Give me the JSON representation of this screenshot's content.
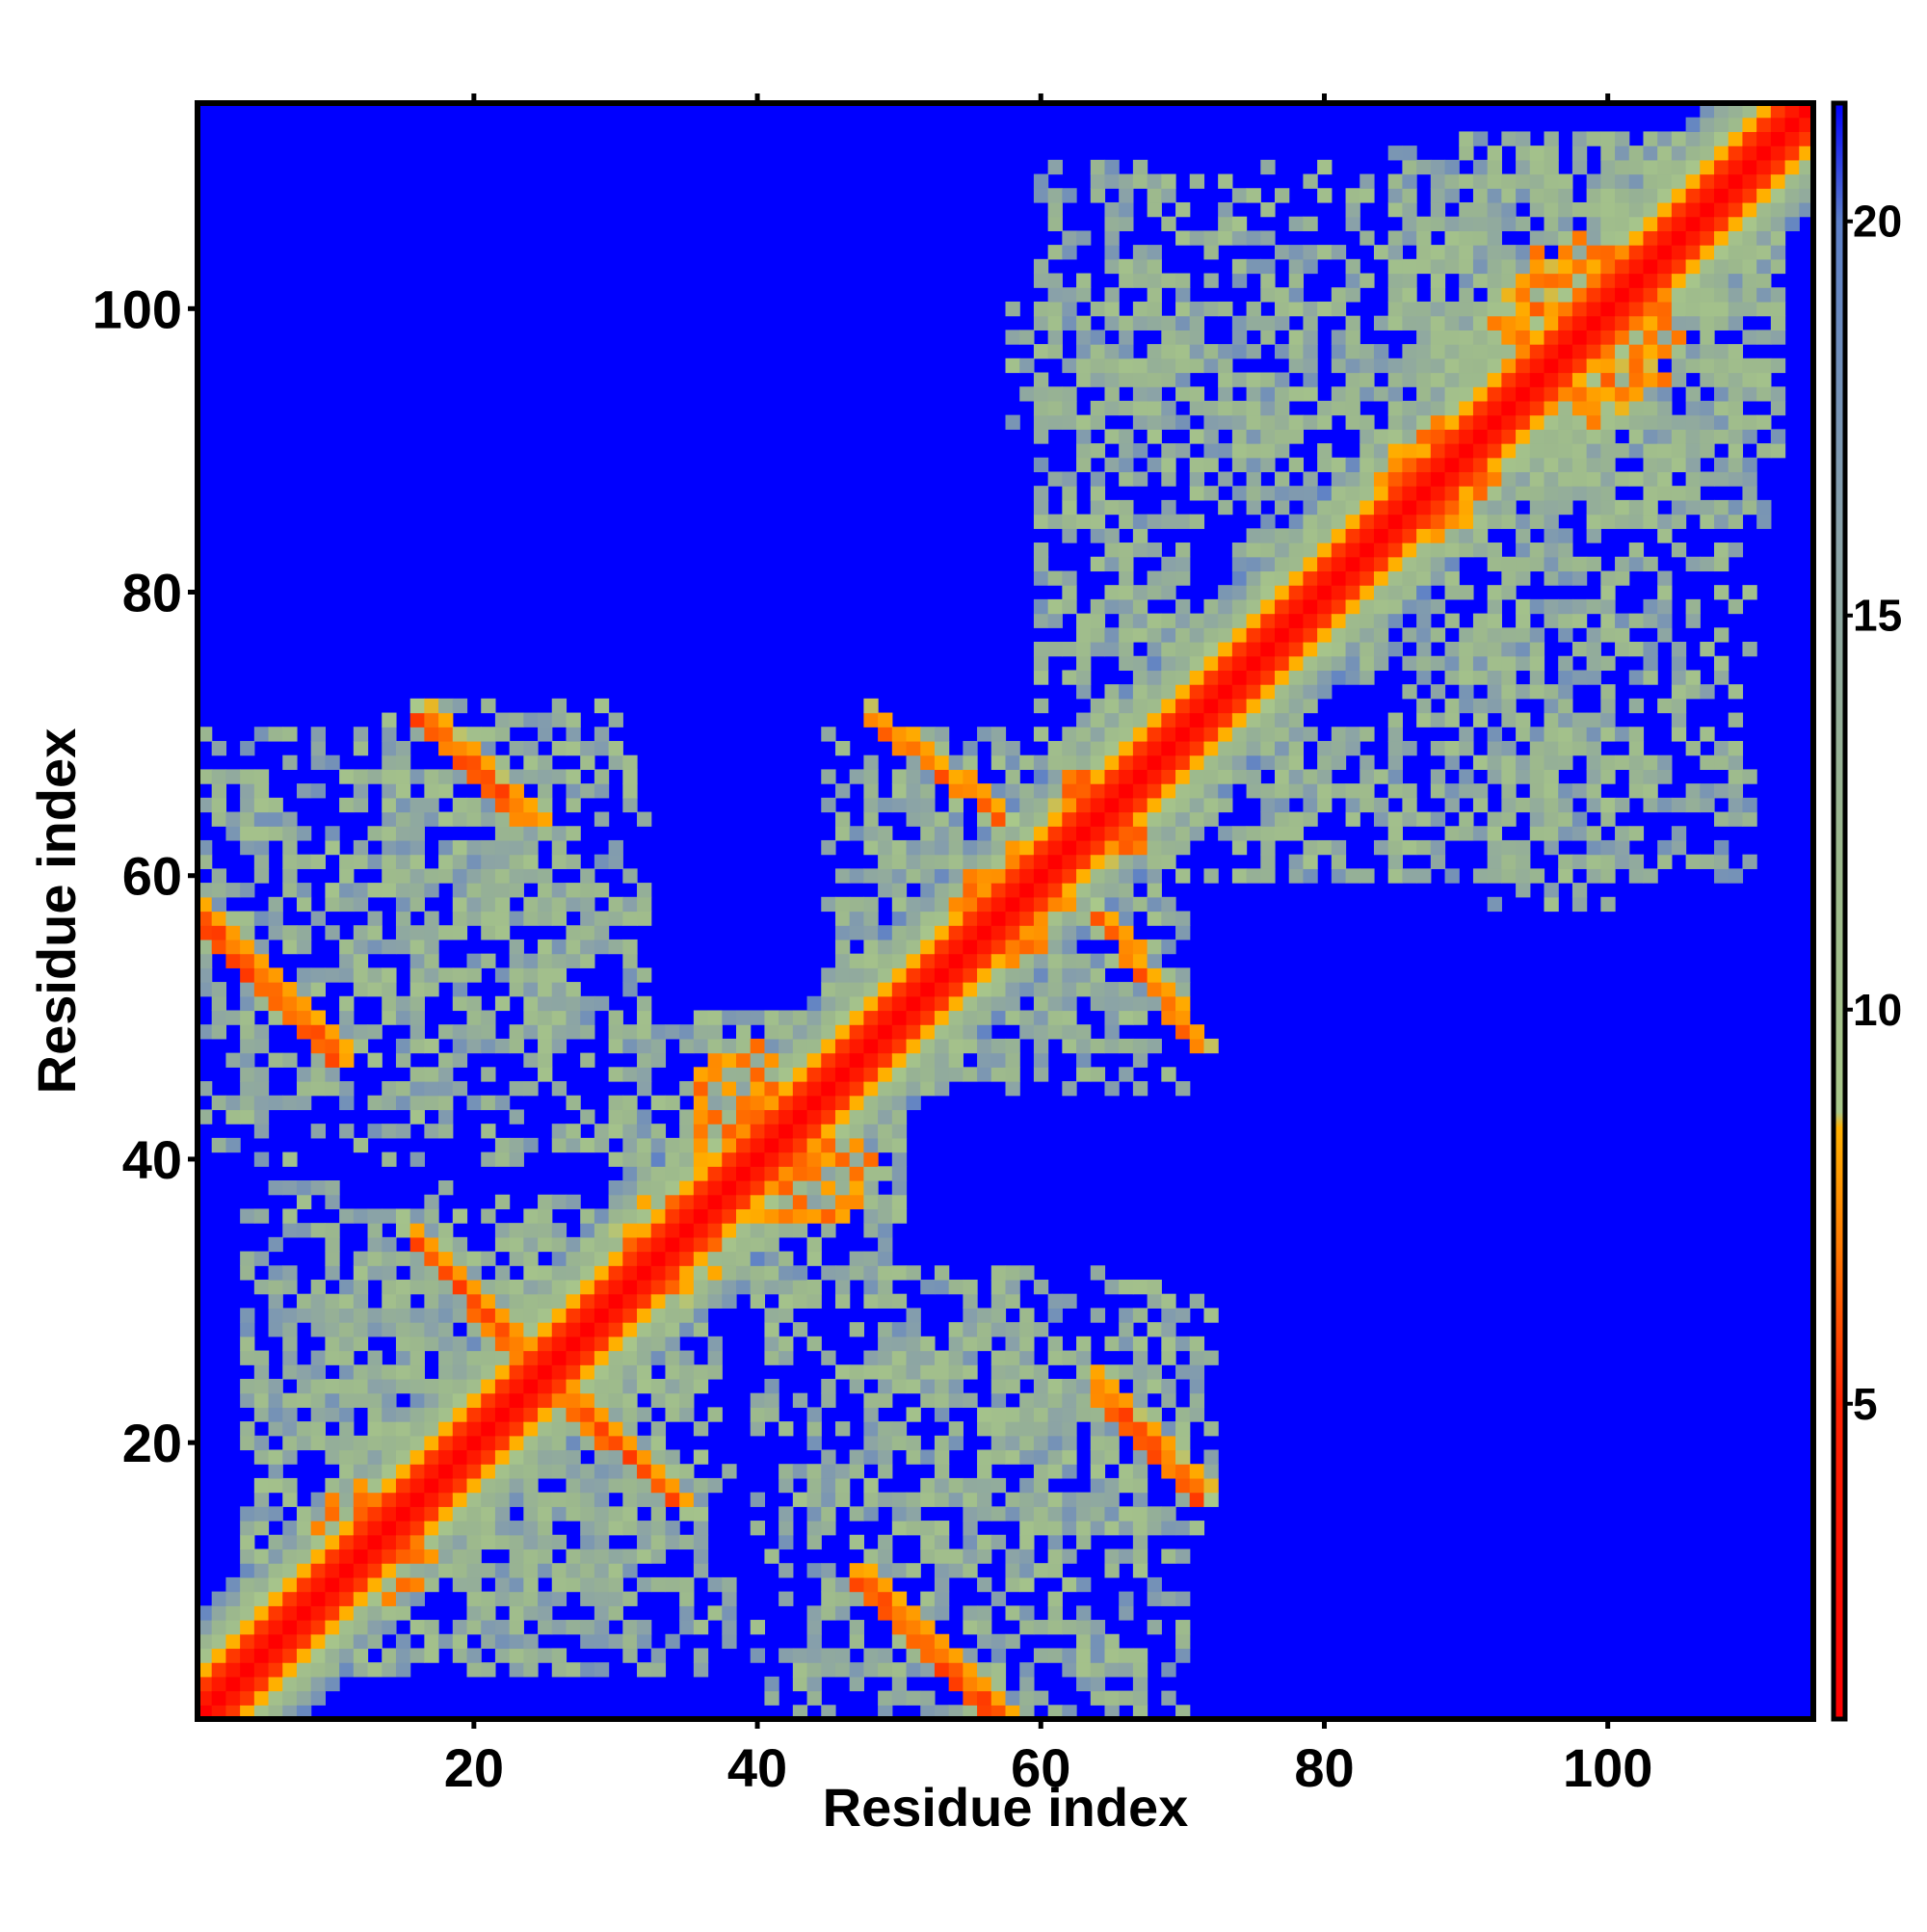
{
  "chart_data": {
    "type": "heatmap",
    "title": "",
    "xlabel": "Residue index",
    "ylabel": "Residue index",
    "n_residues": 114,
    "xlim": [
      1,
      114
    ],
    "ylim": [
      1,
      114
    ],
    "x_ticks": [
      20,
      40,
      60,
      80,
      100
    ],
    "y_ticks": [
      20,
      40,
      60,
      80,
      100
    ],
    "colorbar": {
      "range": [
        1,
        21.5
      ],
      "ticks": [
        5,
        10,
        15,
        20
      ],
      "colors": {
        "low": "#ff0000",
        "mid": "#ff9a00",
        "pale": "#9ec08a",
        "high": "#6f8fbf",
        "max": "#0000ff"
      },
      "stops": [
        [
          1,
          "#ff0000"
        ],
        [
          5,
          "#ff2200"
        ],
        [
          7,
          "#ff7a00"
        ],
        [
          8.5,
          "#ffb000"
        ],
        [
          8.7,
          "#a9c88a"
        ],
        [
          12,
          "#9cb88d"
        ],
        [
          16,
          "#8aa2a8"
        ],
        [
          20,
          "#5c7fc8"
        ],
        [
          21.5,
          "#0000ff"
        ]
      ]
    },
    "background_value": 21.5,
    "diagonal_band": [
      {
        "offset": 0,
        "value": 1.0
      },
      {
        "offset": 1,
        "value": 3.8
      },
      {
        "offset": 2,
        "value": 5.5
      },
      {
        "offset": 3,
        "value": 8.5
      },
      {
        "offset": 4,
        "value": 10.5
      },
      {
        "offset": 5,
        "value": 12.5
      },
      {
        "offset": 6,
        "value": 15.5
      },
      {
        "offset": 7,
        "value": 18.5
      }
    ],
    "contact_strands": [
      {
        "from": [
          16,
          71
        ],
        "to": [
          23,
          64
        ],
        "value": 6.5
      },
      {
        "from": [
          1,
          57
        ],
        "to": [
          10,
          48
        ],
        "value": 6.5
      },
      {
        "from": [
          16,
          34
        ],
        "to": [
          24,
          26
        ],
        "value": 6.5
      },
      {
        "from": [
          25,
          24
        ],
        "to": [
          34,
          16
        ],
        "value": 6.5
      },
      {
        "from": [
          64,
          24
        ],
        "to": [
          71,
          17
        ],
        "value": 6.5
      },
      {
        "from": [
          47,
          10
        ],
        "to": [
          56,
          1
        ],
        "value": 6.5
      },
      {
        "from": [
          48,
          71
        ],
        "to": [
          57,
          64
        ],
        "value": 6.5
      },
      {
        "from": [
          10,
          47
        ],
        "to": [
          1,
          56
        ],
        "value": 6.5
      }
    ],
    "contact_patches": [
      {
        "center": [
          40,
          43
        ],
        "radius": 5,
        "value": 7.0
      },
      {
        "center": [
          58,
          58
        ],
        "radius": 4,
        "value": 7.0
      },
      {
        "center": [
          65,
          64
        ],
        "radius": 3,
        "value": 7.0
      },
      {
        "center": [
          98,
          99
        ],
        "radius": 6,
        "value": 7.0
      },
      {
        "center": [
          88,
          88
        ],
        "radius": 4,
        "value": 7.0
      },
      {
        "center": [
          12,
          14
        ],
        "radius": 3,
        "value": 7.0
      },
      {
        "center": [
          33,
          35
        ],
        "radius": 3,
        "value": 7.0
      }
    ],
    "noise_regions": [
      {
        "x": [
          1,
          26
        ],
        "y": [
          44,
          67
        ],
        "density": 0.38
      },
      {
        "x": [
          14,
          30
        ],
        "y": [
          48,
          72
        ],
        "density": 0.42
      },
      {
        "x": [
          30,
          50
        ],
        "y": [
          35,
          50
        ],
        "density": 0.45
      },
      {
        "x": [
          45,
          70
        ],
        "y": [
          48,
          70
        ],
        "density": 0.45
      },
      {
        "x": [
          60,
          110
        ],
        "y": [
          60,
          100
        ],
        "density": 0.34
      },
      {
        "x": [
          85,
          112
        ],
        "y": [
          88,
          112
        ],
        "density": 0.5
      },
      {
        "x": [
          58,
          70
        ],
        "y": [
          92,
          102
        ],
        "density": 0.28
      },
      {
        "x": [
          93,
          104
        ],
        "y": [
          60,
          70
        ],
        "density": 0.25
      },
      {
        "x": [
          40,
          70
        ],
        "y": [
          1,
          32
        ],
        "density": 0.3
      },
      {
        "x": [
          4,
          38
        ],
        "y": [
          4,
          32
        ],
        "density": 0.35
      },
      {
        "x": [
          18,
          36
        ],
        "y": [
          10,
          30
        ],
        "density": 0.4
      }
    ],
    "grid": false,
    "legend": "colorbar-right"
  }
}
